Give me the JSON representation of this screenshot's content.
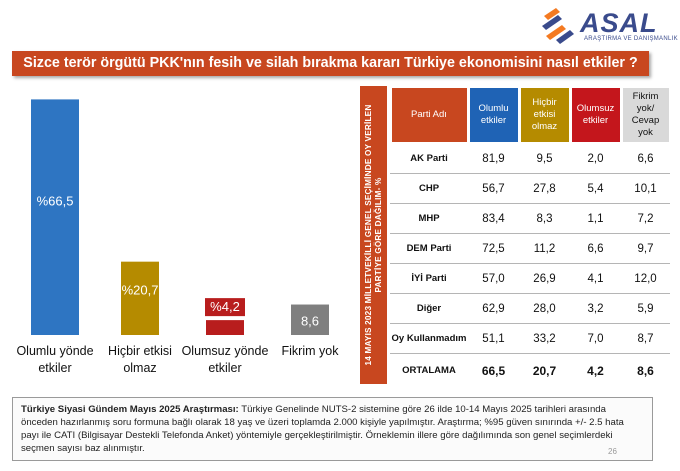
{
  "brand": {
    "name": "ASAL",
    "tagline": "ARAŞTIRMA VE DANIŞMANLIK",
    "colors": {
      "navy": "#3a4b8c",
      "orange": "#f47a21"
    }
  },
  "title": "Sizce terör örgütü PKK'nın fesih ve silah bırakma kararı Türkiye ekonomisini nasıl etkiler ?",
  "chart_data": [
    {
      "type": "bar",
      "title": "",
      "xlabel": "",
      "ylabel": "",
      "ylim": [
        0,
        70
      ],
      "grid": false,
      "legend": "none",
      "categories": [
        "Olumlu yönde etkiler",
        "Hiçbir etkisi olmaz",
        "Olumsuz yönde etkiler",
        "Fikrim yok"
      ],
      "values": [
        66.5,
        20.7,
        4.2,
        8.6
      ],
      "data_labels": [
        "%66,5",
        "%20,7",
        "%4,2",
        "8,6"
      ],
      "colors": [
        "#2e75c2",
        "#b58b00",
        "#b81d1d",
        "#7f7f7f"
      ]
    },
    {
      "type": "table",
      "side_label": "14 MAYIS 2023 MİLLETVEKİLLİ GENEL SEÇİMİNDE OY VERİLEN PARTİYE GÖRE DAĞILIM- %",
      "columns": [
        {
          "label": "Parti Adı",
          "bg": "#c8471f",
          "color": "#ffffff"
        },
        {
          "label": "Olumlu etkiler",
          "bg": "#1f63b5",
          "color": "#ffffff"
        },
        {
          "label": "Hiçbir etkisi olmaz",
          "bg": "#b58b00",
          "color": "#ffffff"
        },
        {
          "label": "Olumsuz etkiler",
          "bg": "#c4161c",
          "color": "#ffffff"
        },
        {
          "label": "Fikrim yok/ Cevap yok",
          "bg": "#d9d9d9",
          "color": "#111111"
        }
      ],
      "rows": [
        {
          "party": "AK Parti",
          "values": [
            "81,9",
            "9,5",
            "2,0",
            "6,6"
          ]
        },
        {
          "party": "CHP",
          "values": [
            "56,7",
            "27,8",
            "5,4",
            "10,1"
          ]
        },
        {
          "party": "MHP",
          "values": [
            "83,4",
            "8,3",
            "1,1",
            "7,2"
          ]
        },
        {
          "party": "DEM Parti",
          "values": [
            "72,5",
            "11,2",
            "6,6",
            "9,7"
          ]
        },
        {
          "party": "İYİ Parti",
          "values": [
            "57,0",
            "26,9",
            "4,1",
            "12,0"
          ]
        },
        {
          "party": "Diğer",
          "values": [
            "62,9",
            "28,0",
            "3,2",
            "5,9"
          ]
        },
        {
          "party": "Oy Kullanmadım",
          "values": [
            "51,1",
            "33,2",
            "7,0",
            "8,7"
          ]
        }
      ],
      "total": {
        "party": "ORTALAMA",
        "values": [
          "66,5",
          "20,7",
          "4,2",
          "8,6"
        ]
      }
    }
  ],
  "note": {
    "bold": "Türkiye Siyasi Gündem Mayıs 2025 Araştırması:",
    "text": " Türkiye Genelinde NUTS-2 sistemine göre 26 ilde 10-14 Mayıs 2025 tarihleri arasında önceden hazırlanmış soru formuna bağlı olarak 18 yaş ve üzeri toplamda 2.000 kişiyle yapılmıştır. Araştırma; %95 güven sınırında +/- 2.5 hata payı ile CATI (Bilgisayar Destekli Telefonda Anket) yöntemiyle gerçekleştirilmiştir. Örneklemin illere göre dağılımında son genel seçimlerdeki seçmen sayısı baz alınmıştır."
  },
  "page_number": "26"
}
